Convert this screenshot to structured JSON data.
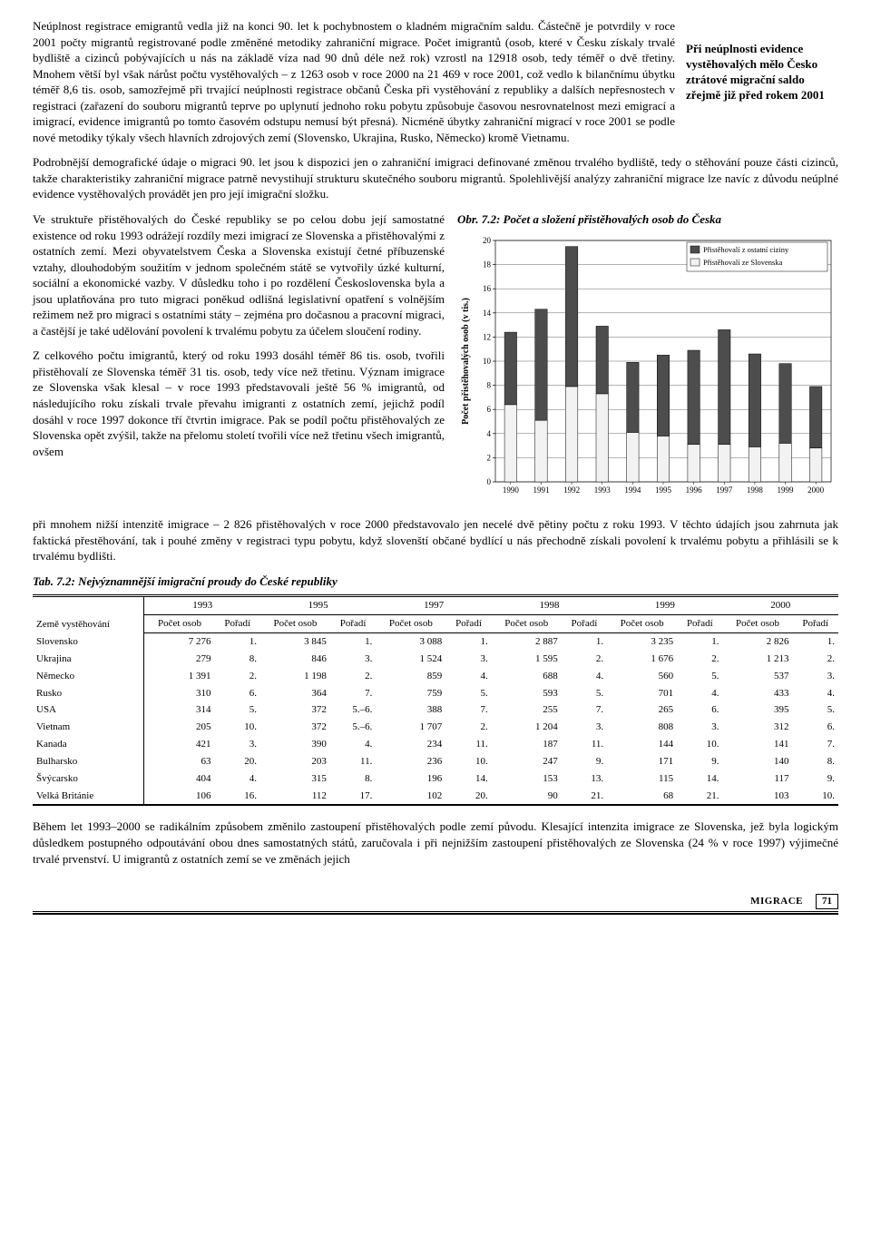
{
  "callout": "Při neúplnosti evidence vystěhovalých mělo Česko ztrátové migrační saldo zřejmě již před rokem 2001",
  "para1": "Neúplnost registrace emigrantů vedla již na konci 90. let k pochybnostem o kladném migračním saldu. Částečně je potvrdily v roce 2001 počty migrantů registrované podle změněné metodiky zahraniční migrace. Počet imigrantů (osob, které v Česku získaly trvalé bydliště a cizinců pobývajících u nás na základě víza nad 90 dnů déle než rok) vzrostl na 12918 osob, tedy téměř o dvě třetiny. Mnohem větší byl však nárůst počtu vystěhovalých – z 1263 osob v roce 2000 na 21 469 v roce 2001, což vedlo k bilančnímu úbytku téměř 8,6 tis. osob, samozřejmě při trvající neúplnosti registrace občanů Česka při vystěhování z republiky a dalších nepřesnostech v registraci (zařazení do souboru migrantů teprve po uplynutí jednoho roku pobytu způsobuje časovou nesrovnatelnost mezi emigrací a imigrací, evidence imigrantů po tomto časovém odstupu nemusí být přesná). Nicméně úbytky zahraniční migrací v roce 2001 se podle nové metodiky týkaly všech hlavních zdrojových zemí (Slovensko, Ukrajina, Rusko, Německo) kromě Vietnamu.",
  "para2": "Podrobnější demografické údaje o migraci 90. let jsou k dispozici jen o zahraniční imigraci definované změnou trvalého bydliště, tedy o stěhování pouze části cizinců, takže charakteristiky zahraniční migrace patrně nevystihují strukturu skutečného souboru migrantů. Spolehlivější analýzy zahraniční migrace lze navíc z důvodu neúplné evidence vystěhovalých provádět jen pro její imigrační složku.",
  "para3": "Ve struktuře přistěhovalých do České republiky se po celou dobu její samostatné existence od roku 1993 odrážejí rozdíly mezi imigrací ze Slovenska a přistěhovalými z ostatních zemí. Mezi obyvatelstvem Česka a Slovenska existují četné příbuzenské vztahy, dlouhodobým soužitím v jednom společném státě se vytvořily úzké kulturní, sociální a ekonomické vazby. V důsledku toho i po rozdělení Československa byla a jsou uplatňována pro tuto migraci poněkud odlišná legislativní opatření s volnějším režimem než pro migraci s ostatními státy – zejména pro dočasnou a pracovní migraci, a častější je také udělování povolení k trvalému pobytu za účelem sloučení rodiny.",
  "para4": "Z celkového počtu imigrantů, který od roku 1993 dosáhl téměř 86 tis. osob, tvořili přistěhovalí ze Slovenska téměř 31 tis. osob, tedy více než třetinu. Význam imigrace ze Slovenska však klesal – v roce 1993 představovali ještě 56 % imigrantů, od následujícího roku získali trvale převahu imigranti z ostatních zemí, jejichž podíl dosáhl v roce 1997 dokonce tří čtvrtin imigrace. Pak se podíl počtu přistěhovalých ze Slovenska opět zvýšil, takže na přelomu století tvořili více než třetinu všech imigrantů, ovšem",
  "para5": "při mnohem nižší intenzitě imigrace – 2 826 přistěhovalých v roce 2000 představovalo jen necelé dvě pětiny počtu z roku 1993. V těchto údajích jsou zahrnuta jak faktická přestěhování, tak i pouhé změny v registraci typu pobytu, když slovenští občané bydlící u nás přechodně získali povolení k trvalému pobytu a přihlásili se k trvalému bydlišti.",
  "chart": {
    "caption": "Obr. 7.2: Počet a složení přistěhovalých osob do Česka",
    "years": [
      "1990",
      "1991",
      "1992",
      "1993",
      "1994",
      "1995",
      "1996",
      "1997",
      "1998",
      "1999",
      "2000"
    ],
    "slovakia": [
      6.4,
      5.1,
      7.9,
      7.3,
      4.1,
      3.8,
      3.1,
      3.1,
      2.9,
      3.2,
      2.8
    ],
    "other": [
      6.0,
      9.2,
      11.6,
      5.6,
      5.8,
      6.7,
      7.8,
      9.5,
      7.7,
      6.6,
      5.1
    ],
    "ylim": [
      0,
      20
    ],
    "ytick_step": 2,
    "bar_width": 0.4,
    "color_sk": "#f2f2f2",
    "color_other": "#4d4d4d",
    "grid_color": "#000000",
    "bg": "#ffffff",
    "ylabel": "Počet přistěhovalých osob (v tis.)",
    "legend_other": "Přistěhovalí z ostatní ciziny",
    "legend_sk": "Přistěhovalí ze Slovenska"
  },
  "table": {
    "title": "Tab. 7.2: Nejvýznamnější imigrační proudy do České republiky",
    "header_country": "Země vystěhování",
    "header_count": "Počet osob",
    "header_rank": "Pořadí",
    "years": [
      "1993",
      "1995",
      "1997",
      "1998",
      "1999",
      "2000"
    ],
    "rows": [
      {
        "country": "Slovensko",
        "cells": [
          [
            "7 276",
            "1."
          ],
          [
            "3 845",
            "1."
          ],
          [
            "3 088",
            "1."
          ],
          [
            "2 887",
            "1."
          ],
          [
            "3 235",
            "1."
          ],
          [
            "2 826",
            "1."
          ]
        ]
      },
      {
        "country": "Ukrajina",
        "cells": [
          [
            "279",
            "8."
          ],
          [
            "846",
            "3."
          ],
          [
            "1 524",
            "3."
          ],
          [
            "1 595",
            "2."
          ],
          [
            "1 676",
            "2."
          ],
          [
            "1 213",
            "2."
          ]
        ]
      },
      {
        "country": "Německo",
        "cells": [
          [
            "1 391",
            "2."
          ],
          [
            "1 198",
            "2."
          ],
          [
            "859",
            "4."
          ],
          [
            "688",
            "4."
          ],
          [
            "560",
            "5."
          ],
          [
            "537",
            "3."
          ]
        ]
      },
      {
        "country": "Rusko",
        "cells": [
          [
            "310",
            "6."
          ],
          [
            "364",
            "7."
          ],
          [
            "759",
            "5."
          ],
          [
            "593",
            "5."
          ],
          [
            "701",
            "4."
          ],
          [
            "433",
            "4."
          ]
        ]
      },
      {
        "country": "USA",
        "cells": [
          [
            "314",
            "5."
          ],
          [
            "372",
            "5.–6."
          ],
          [
            "388",
            "7."
          ],
          [
            "255",
            "7."
          ],
          [
            "265",
            "6."
          ],
          [
            "395",
            "5."
          ]
        ]
      },
      {
        "country": "Vietnam",
        "cells": [
          [
            "205",
            "10."
          ],
          [
            "372",
            "5.–6."
          ],
          [
            "1 707",
            "2."
          ],
          [
            "1 204",
            "3."
          ],
          [
            "808",
            "3."
          ],
          [
            "312",
            "6."
          ]
        ]
      },
      {
        "country": "Kanada",
        "cells": [
          [
            "421",
            "3."
          ],
          [
            "390",
            "4."
          ],
          [
            "234",
            "11."
          ],
          [
            "187",
            "11."
          ],
          [
            "144",
            "10."
          ],
          [
            "141",
            "7."
          ]
        ]
      },
      {
        "country": "Bulharsko",
        "cells": [
          [
            "63",
            "20."
          ],
          [
            "203",
            "11."
          ],
          [
            "236",
            "10."
          ],
          [
            "247",
            "9."
          ],
          [
            "171",
            "9."
          ],
          [
            "140",
            "8."
          ]
        ]
      },
      {
        "country": "Švýcarsko",
        "cells": [
          [
            "404",
            "4."
          ],
          [
            "315",
            "8."
          ],
          [
            "196",
            "14."
          ],
          [
            "153",
            "13."
          ],
          [
            "115",
            "14."
          ],
          [
            "117",
            "9."
          ]
        ]
      },
      {
        "country": "Velká Británie",
        "cells": [
          [
            "106",
            "16."
          ],
          [
            "112",
            "17."
          ],
          [
            "102",
            "20."
          ],
          [
            "90",
            "21."
          ],
          [
            "68",
            "21."
          ],
          [
            "103",
            "10."
          ]
        ]
      }
    ]
  },
  "para6": "Během let 1993–2000 se radikálním způsobem změnilo zastoupení přistěhovalých podle zemí původu. Klesající intenzita imigrace ze Slovenska, jež byla logickým důsledkem postupného odpoutávání obou dnes samostatných států, zaručovala i při nejnižším zastoupení přistěhovalých ze Slovenska (24 % v roce 1997) výjimečné trvalé prvenství. U imigrantů z ostatních zemí se ve změnách jejich",
  "footer": {
    "label": "MIGRACE",
    "page": "71"
  }
}
